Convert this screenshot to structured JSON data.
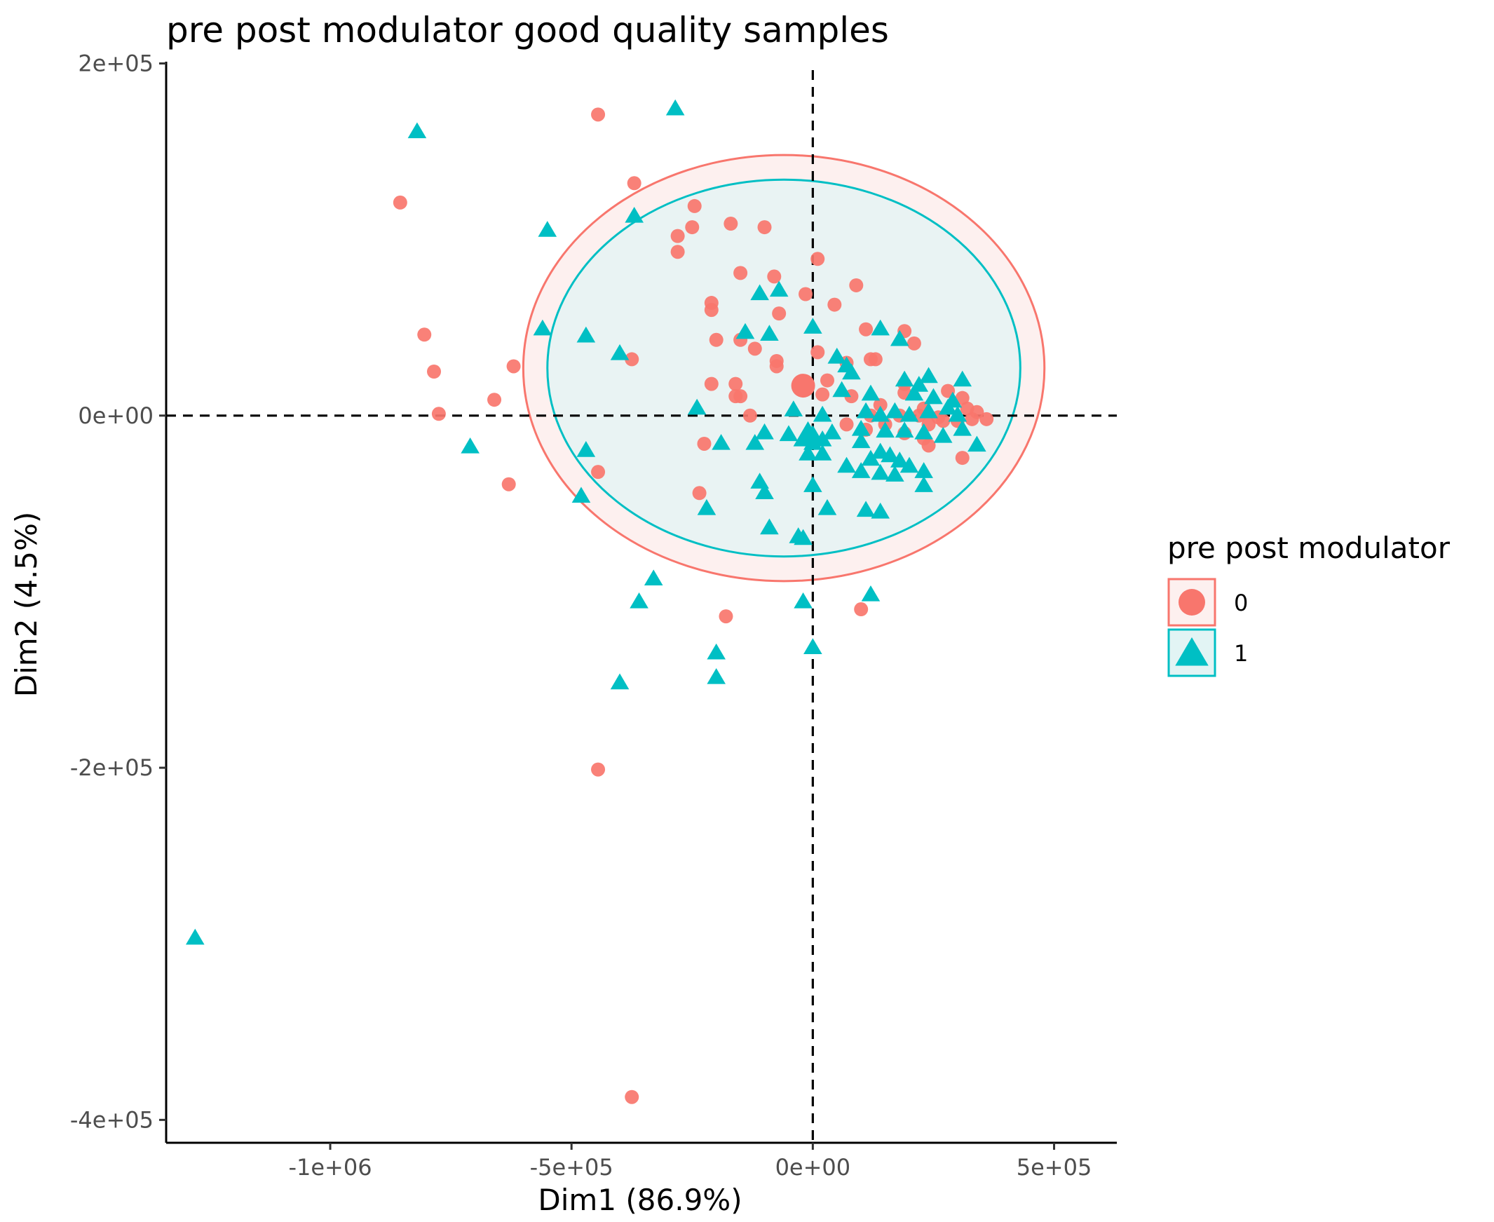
{
  "chart_data": {
    "type": "scatter",
    "title": "pre post modulator good quality samples",
    "xlabel": "Dim1 (86.9%)",
    "ylabel": "Dim2 (4.5%)",
    "xlim": [
      -1340000,
      630000
    ],
    "ylim": [
      -413000,
      201000
    ],
    "xticks": [
      -1000000,
      -500000,
      0,
      500000
    ],
    "xtick_labels": [
      "-1e+06",
      "-5e+05",
      "0e+00",
      "5e+05"
    ],
    "yticks": [
      200000,
      0,
      -200000,
      -400000
    ],
    "ytick_labels": [
      "2e+05",
      "0e+00",
      "-2e+05",
      "-4e+05"
    ],
    "reference_lines": {
      "x": 0,
      "y": 0,
      "style": "dashed"
    },
    "grid": false,
    "legend": {
      "title": "pre post modulator",
      "position": "right"
    },
    "series": [
      {
        "name": "0",
        "marker": "circle",
        "color": "#F8766D",
        "centroid": [
          -20000,
          17000
        ],
        "ellipse": {
          "center": [
            -60000,
            27000
          ],
          "rx": 540000,
          "ry": 121000,
          "fill": "#FDF0EF"
        },
        "points": [
          [
            -445000,
            171000
          ],
          [
            -370000,
            132000
          ],
          [
            -855000,
            121000
          ],
          [
            -245000,
            119000
          ],
          [
            -170000,
            109000
          ],
          [
            -100000,
            107000
          ],
          [
            -250000,
            107000
          ],
          [
            -280000,
            102000
          ],
          [
            -280000,
            93000
          ],
          [
            10000,
            89000
          ],
          [
            -150000,
            81000
          ],
          [
            -80000,
            79000
          ],
          [
            90000,
            74000
          ],
          [
            -15000,
            69000
          ],
          [
            45000,
            63000
          ],
          [
            -210000,
            64000
          ],
          [
            -210000,
            60000
          ],
          [
            -70000,
            58000
          ],
          [
            110000,
            49000
          ],
          [
            190000,
            48000
          ],
          [
            -805000,
            46000
          ],
          [
            -200000,
            43000
          ],
          [
            -150000,
            43000
          ],
          [
            -120000,
            38000
          ],
          [
            210000,
            41000
          ],
          [
            10000,
            36000
          ],
          [
            -375000,
            32000
          ],
          [
            -620000,
            28000
          ],
          [
            -785000,
            25000
          ],
          [
            -75000,
            31000
          ],
          [
            -75000,
            28000
          ],
          [
            120000,
            32000
          ],
          [
            130000,
            32000
          ],
          [
            70000,
            30000
          ],
          [
            30000,
            20000
          ],
          [
            -210000,
            18000
          ],
          [
            -160000,
            18000
          ],
          [
            190000,
            18000
          ],
          [
            -660000,
            9000
          ],
          [
            -150000,
            11000
          ],
          [
            -160000,
            11000
          ],
          [
            20000,
            12000
          ],
          [
            80000,
            11000
          ],
          [
            190000,
            13000
          ],
          [
            280000,
            14000
          ],
          [
            310000,
            10000
          ],
          [
            140000,
            6000
          ],
          [
            230000,
            4000
          ],
          [
            320000,
            4000
          ],
          [
            340000,
            2000
          ],
          [
            -775000,
            1000
          ],
          [
            -130000,
            0
          ],
          [
            120000,
            0
          ],
          [
            180000,
            0
          ],
          [
            220000,
            0
          ],
          [
            260000,
            -1000
          ],
          [
            300000,
            -3000
          ],
          [
            330000,
            -2000
          ],
          [
            360000,
            -2000
          ],
          [
            70000,
            -5000
          ],
          [
            150000,
            -5000
          ],
          [
            240000,
            -5000
          ],
          [
            270000,
            -3000
          ],
          [
            110000,
            -8000
          ],
          [
            190000,
            -10000
          ],
          [
            230000,
            -13000
          ],
          [
            240000,
            -17000
          ],
          [
            -225000,
            -16000
          ],
          [
            310000,
            -24000
          ],
          [
            -445000,
            -32000
          ],
          [
            -630000,
            -39000
          ],
          [
            -235000,
            -44000
          ],
          [
            100000,
            -110000
          ],
          [
            -180000,
            -114000
          ],
          [
            -445000,
            -201000
          ],
          [
            -375000,
            -387000
          ]
        ]
      },
      {
        "name": "1",
        "marker": "triangle",
        "color": "#00BFC4",
        "centroid": [
          -10000,
          -12000
        ],
        "ellipse": {
          "center": [
            -60000,
            27000
          ],
          "rx": 490000,
          "ry": 107000,
          "fill": "#E2F4F4"
        },
        "points": [
          [
            -285000,
            174000
          ],
          [
            -820000,
            161000
          ],
          [
            -370000,
            113000
          ],
          [
            -550000,
            105000
          ],
          [
            -70000,
            71000
          ],
          [
            -110000,
            69000
          ],
          [
            -560000,
            49000
          ],
          [
            -470000,
            45000
          ],
          [
            -140000,
            47000
          ],
          [
            -90000,
            46000
          ],
          [
            0,
            50000
          ],
          [
            140000,
            49000
          ],
          [
            180000,
            43000
          ],
          [
            -400000,
            35000
          ],
          [
            50000,
            33000
          ],
          [
            70000,
            28000
          ],
          [
            80000,
            24000
          ],
          [
            190000,
            20000
          ],
          [
            220000,
            17000
          ],
          [
            240000,
            22000
          ],
          [
            310000,
            20000
          ],
          [
            60000,
            14000
          ],
          [
            120000,
            12000
          ],
          [
            210000,
            12000
          ],
          [
            250000,
            10000
          ],
          [
            290000,
            8000
          ],
          [
            -40000,
            3000
          ],
          [
            -240000,
            4000
          ],
          [
            20000,
            0
          ],
          [
            110000,
            2000
          ],
          [
            140000,
            0
          ],
          [
            170000,
            2000
          ],
          [
            200000,
            0
          ],
          [
            240000,
            2000
          ],
          [
            280000,
            4000
          ],
          [
            300000,
            0
          ],
          [
            -100000,
            -10000
          ],
          [
            -50000,
            -11000
          ],
          [
            0,
            -11000
          ],
          [
            40000,
            -10000
          ],
          [
            100000,
            -8000
          ],
          [
            150000,
            -9000
          ],
          [
            190000,
            -9000
          ],
          [
            230000,
            -10000
          ],
          [
            270000,
            -12000
          ],
          [
            310000,
            -8000
          ],
          [
            -120000,
            -16000
          ],
          [
            -190000,
            -16000
          ],
          [
            -710000,
            -18000
          ],
          [
            -470000,
            -20000
          ],
          [
            0,
            -16000
          ],
          [
            20000,
            -14000
          ],
          [
            100000,
            -15000
          ],
          [
            140000,
            -21000
          ],
          [
            160000,
            -23000
          ],
          [
            -10000,
            -22000
          ],
          [
            20000,
            -22000
          ],
          [
            120000,
            -25000
          ],
          [
            180000,
            -26000
          ],
          [
            340000,
            -17000
          ],
          [
            70000,
            -29000
          ],
          [
            100000,
            -32000
          ],
          [
            140000,
            -33000
          ],
          [
            170000,
            -34000
          ],
          [
            200000,
            -29000
          ],
          [
            230000,
            -32000
          ],
          [
            -110000,
            -38000
          ],
          [
            -100000,
            -44000
          ],
          [
            0,
            -40000
          ],
          [
            230000,
            -40000
          ],
          [
            -480000,
            -46000
          ],
          [
            -220000,
            -53000
          ],
          [
            30000,
            -53000
          ],
          [
            110000,
            -54000
          ],
          [
            140000,
            -55000
          ],
          [
            -90000,
            -64000
          ],
          [
            -30000,
            -69000
          ],
          [
            -20000,
            -70000
          ],
          [
            -330000,
            -93000
          ],
          [
            120000,
            -102000
          ],
          [
            -360000,
            -106000
          ],
          [
            -20000,
            -106000
          ],
          [
            0,
            -132000
          ],
          [
            -200000,
            -135000
          ],
          [
            -200000,
            -149000
          ],
          [
            -400000,
            -152000
          ],
          [
            -1280000,
            -297000
          ]
        ]
      }
    ]
  }
}
